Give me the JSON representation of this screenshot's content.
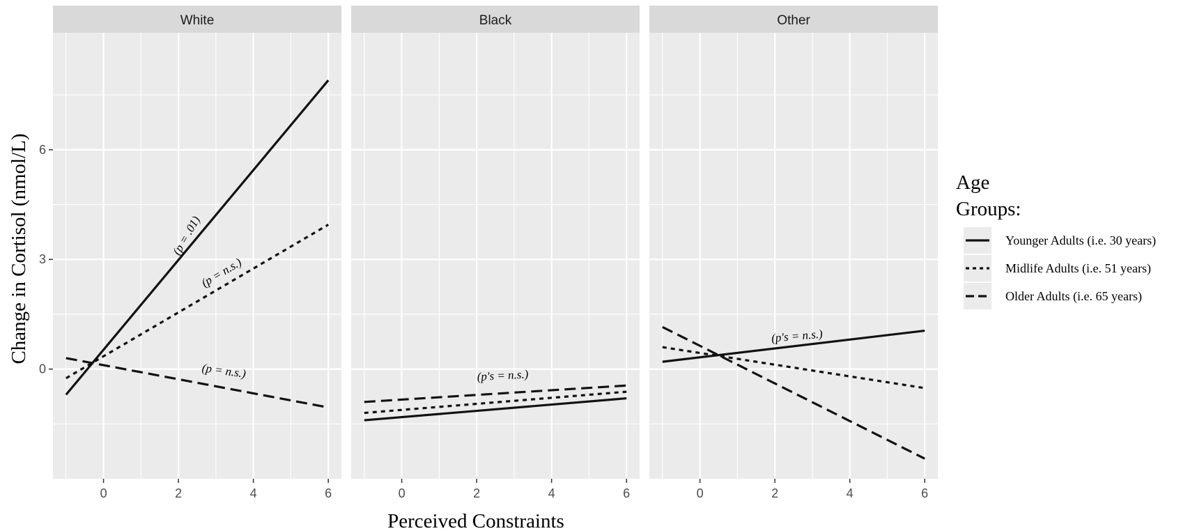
{
  "chart_data": {
    "type": "line",
    "xlabel": "Perceived Constraints",
    "ylabel": "Change in Cortisol (nmol/L)",
    "xlim": [
      -1.35,
      6.35
    ],
    "ylim": [
      -3.0,
      9.2
    ],
    "x_ticks": [
      0,
      2,
      4,
      6
    ],
    "x_tick_labels": [
      "0",
      "2",
      "4",
      "6"
    ],
    "y_ticks": [
      0,
      3,
      6
    ],
    "y_tick_labels": [
      "0",
      "3",
      "6"
    ],
    "grid": true,
    "legend": {
      "title_lines": [
        "Age",
        "Groups:"
      ],
      "placement": "right",
      "entries": [
        {
          "label": "Younger Adults (i.e. 30 years)",
          "linetype": "solid"
        },
        {
          "label": "Midlife Adults (i.e. 51 years)",
          "linetype": "dotted"
        },
        {
          "label": "Older Adults (i.e. 65 years)",
          "linetype": "dashed"
        }
      ]
    },
    "panels": [
      {
        "strip": "White",
        "series": [
          {
            "linetype": "solid",
            "x": [
              -1,
              6
            ],
            "y": [
              -0.7,
              7.9
            ]
          },
          {
            "linetype": "dotted",
            "x": [
              -1,
              6
            ],
            "y": [
              -0.25,
              3.95
            ]
          },
          {
            "linetype": "dashed",
            "x": [
              -1,
              6
            ],
            "y": [
              0.3,
              -1.05
            ]
          }
        ],
        "annotations": [
          {
            "text": "(p = .01)",
            "x": 2.3,
            "y": 3.6,
            "angle": -60
          },
          {
            "text": "(p = n.s.)",
            "x": 3.2,
            "y": 2.55,
            "angle": -31
          },
          {
            "text": "(p = n.s.)",
            "x": 3.2,
            "y": -0.15,
            "angle": 8
          }
        ]
      },
      {
        "strip": "Black",
        "series": [
          {
            "linetype": "solid",
            "x": [
              -1,
              6
            ],
            "y": [
              -1.4,
              -0.8
            ]
          },
          {
            "linetype": "dotted",
            "x": [
              -1,
              6
            ],
            "y": [
              -1.2,
              -0.62
            ]
          },
          {
            "linetype": "dashed",
            "x": [
              -1,
              6
            ],
            "y": [
              -0.9,
              -0.45
            ]
          }
        ],
        "annotations": [
          {
            "text": "(p's = n.s.)",
            "x": 2.7,
            "y": -0.28,
            "angle": -3
          }
        ]
      },
      {
        "strip": "Other",
        "series": [
          {
            "linetype": "solid",
            "x": [
              -1,
              6
            ],
            "y": [
              0.2,
              1.05
            ]
          },
          {
            "linetype": "dotted",
            "x": [
              -1,
              6
            ],
            "y": [
              0.6,
              -0.52
            ]
          },
          {
            "linetype": "dashed",
            "x": [
              -1,
              6
            ],
            "y": [
              1.15,
              -2.45
            ]
          }
        ],
        "annotations": [
          {
            "text": "(p's = n.s.)",
            "x": 2.6,
            "y": 0.8,
            "angle": -5
          }
        ]
      }
    ]
  }
}
